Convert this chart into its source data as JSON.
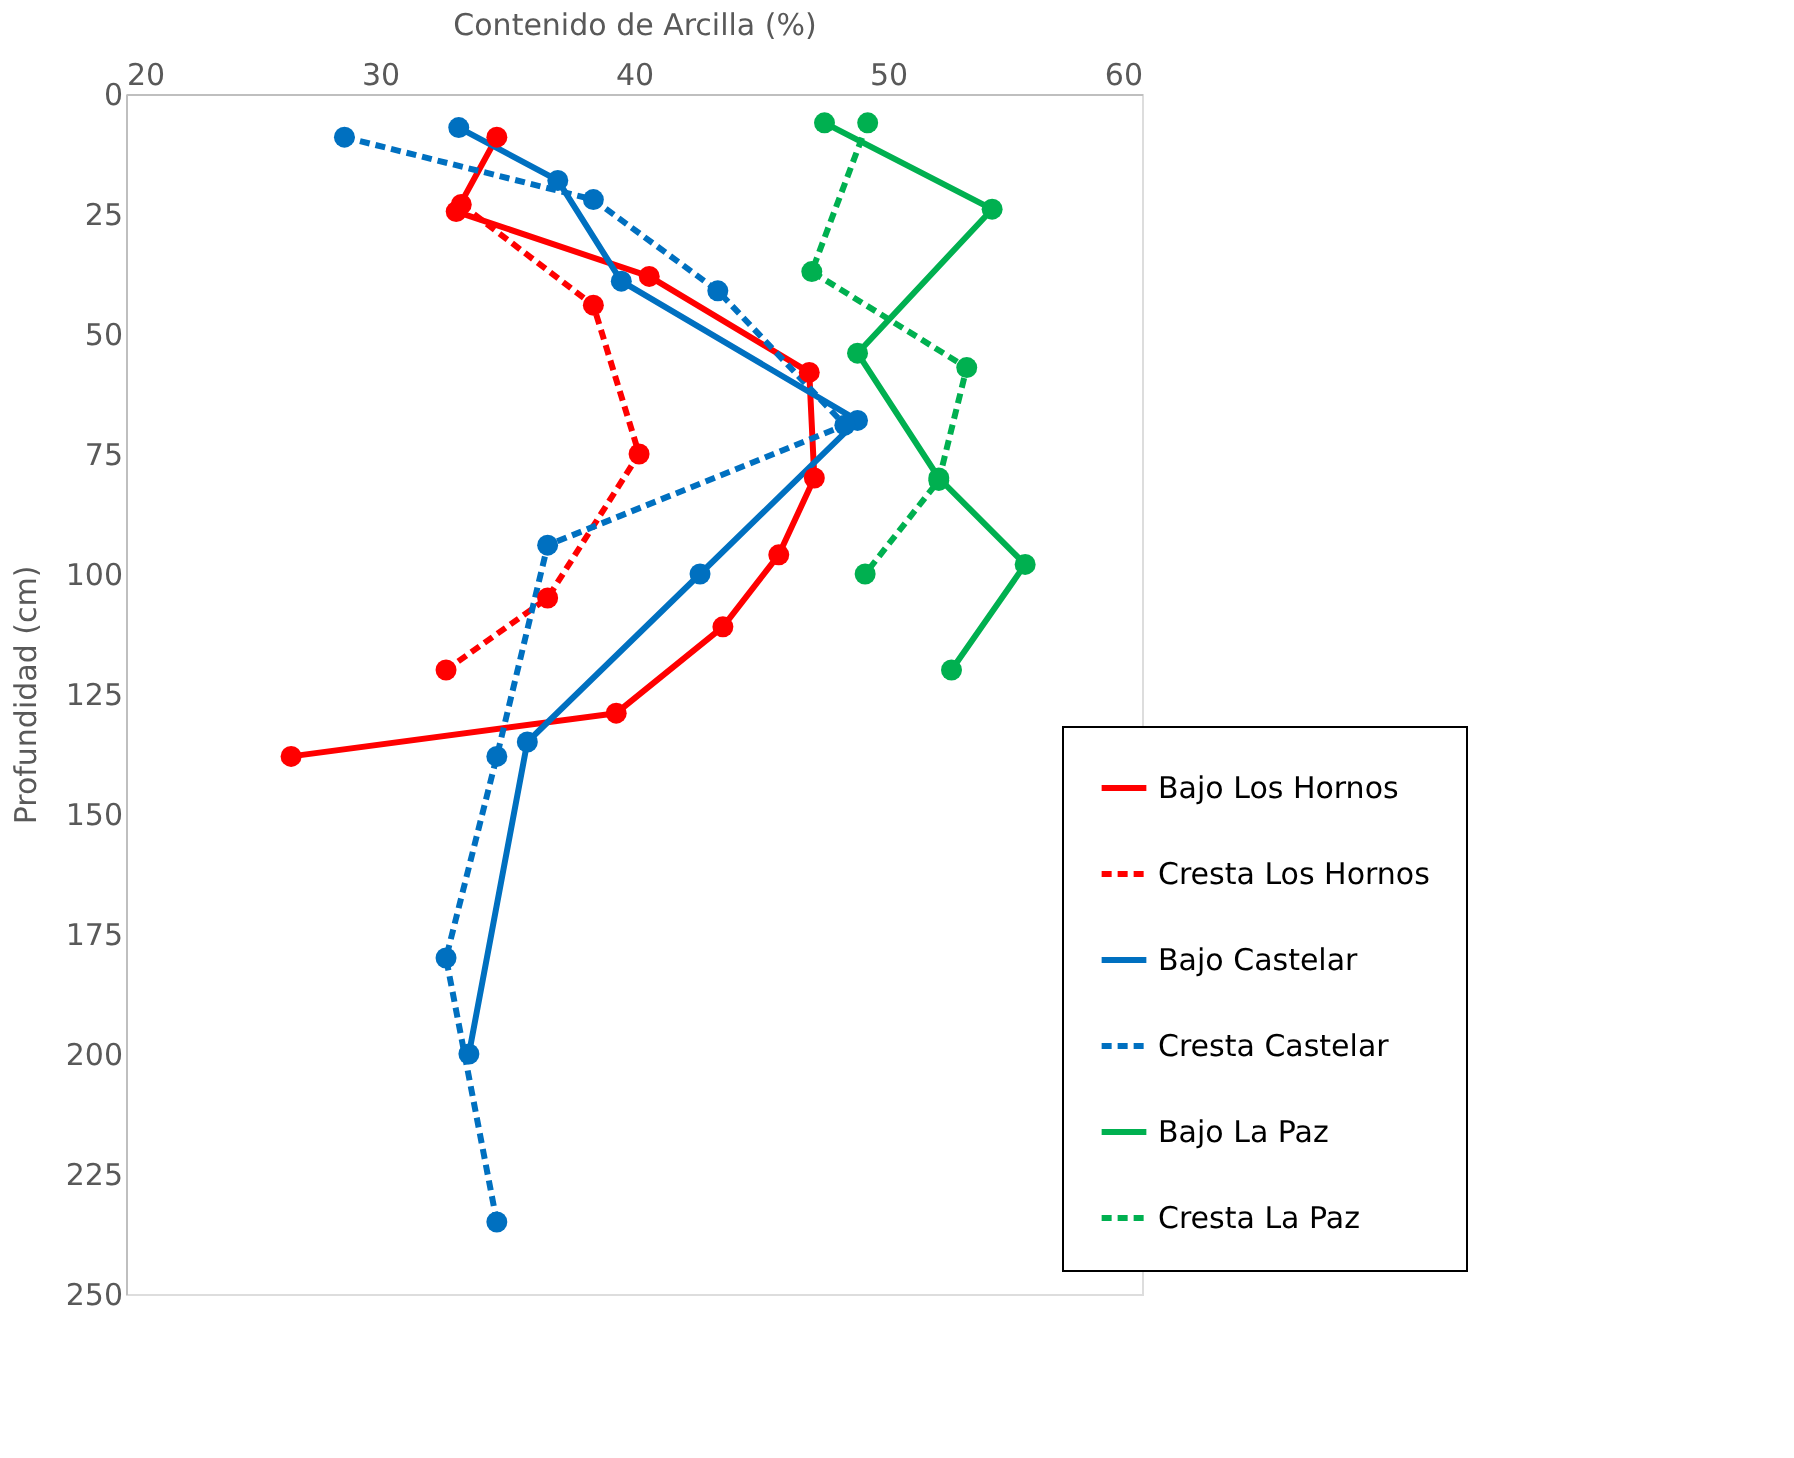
{
  "chart_data": {
    "type": "line",
    "xlabel": "Contenido de Arcilla (%)",
    "ylabel": "Profundidad (cm)",
    "xlim": [
      20,
      60
    ],
    "xticks": [
      20,
      30,
      40,
      50,
      60
    ],
    "ylim": [
      250,
      0
    ],
    "yticks": [
      0,
      25,
      50,
      75,
      100,
      125,
      150,
      175,
      200,
      225,
      250
    ],
    "grid": false,
    "legend": "bottom right",
    "marker": "circle",
    "series": [
      {
        "name": "Bajo Los Hornos",
        "color": "#ff0000",
        "line_style": "solid",
        "x": [
          34.6,
          33.0,
          40.6,
          46.9,
          47.1,
          45.7,
          43.5,
          39.3,
          26.5
        ],
        "values": [
          9,
          24.5,
          38,
          58,
          80,
          96,
          111,
          129,
          138
        ]
      },
      {
        "name": "Cresta Los Hornos",
        "color": "#ff0000",
        "line_style": "dashed",
        "x": [
          33.2,
          38.4,
          40.2,
          36.6,
          32.6
        ],
        "values": [
          23,
          44,
          75,
          105,
          120
        ]
      },
      {
        "name": "Bajo Castelar",
        "color": "#0070c0",
        "line_style": "solid",
        "x": [
          33.1,
          37.0,
          39.5,
          48.8,
          42.6,
          35.8,
          33.5
        ],
        "values": [
          7,
          18,
          39,
          68,
          100,
          135,
          200
        ]
      },
      {
        "name": "Cresta  Castelar",
        "color": "#0070c0",
        "line_style": "dashed",
        "x": [
          28.6,
          38.4,
          43.3,
          48.3,
          36.6,
          34.6,
          32.6,
          34.6
        ],
        "values": [
          9,
          22,
          41,
          69,
          94,
          138,
          180,
          235
        ]
      },
      {
        "name": "Bajo La Paz",
        "color": "#00b050",
        "line_style": "solid",
        "x": [
          47.5,
          54.1,
          48.8,
          52.0,
          55.4,
          52.5
        ],
        "values": [
          6,
          24,
          54,
          80,
          98,
          120
        ]
      },
      {
        "name": "Cresta La Paz",
        "color": "#00b050",
        "line_style": "dashed",
        "x": [
          49.2,
          47.0,
          53.1,
          52.0,
          49.1
        ],
        "values": [
          6,
          37,
          57,
          80.5,
          100
        ]
      }
    ]
  }
}
